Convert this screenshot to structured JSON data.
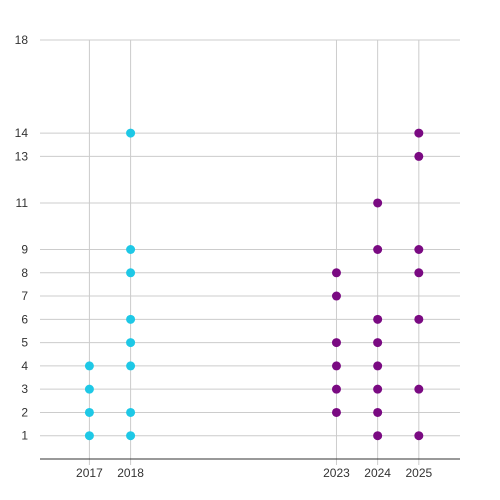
{
  "chart_data": {
    "type": "scatter",
    "title": "",
    "xlabel": "",
    "ylabel": "",
    "grid": true,
    "legend": "none",
    "x_ticks": [
      2017,
      2018,
      2023,
      2024,
      2025
    ],
    "y_ticks": [
      1,
      2,
      3,
      4,
      5,
      6,
      7,
      8,
      9,
      11,
      13,
      14,
      18
    ],
    "xlim": [
      2015.8,
      2026
    ],
    "ylim": [
      0,
      18
    ],
    "series": [
      {
        "color": "#1ec8e6",
        "points": [
          [
            2017,
            1
          ],
          [
            2017,
            2
          ],
          [
            2017,
            3
          ],
          [
            2017,
            4
          ],
          [
            2018,
            1
          ],
          [
            2018,
            2
          ],
          [
            2018,
            4
          ],
          [
            2018,
            5
          ],
          [
            2018,
            6
          ],
          [
            2018,
            8
          ],
          [
            2018,
            9
          ],
          [
            2018,
            14
          ]
        ]
      },
      {
        "color": "#7a0a82",
        "points": [
          [
            2023,
            2
          ],
          [
            2023,
            3
          ],
          [
            2023,
            4
          ],
          [
            2023,
            5
          ],
          [
            2023,
            7
          ],
          [
            2023,
            8
          ],
          [
            2024,
            1
          ],
          [
            2024,
            2
          ],
          [
            2024,
            3
          ],
          [
            2024,
            4
          ],
          [
            2024,
            5
          ],
          [
            2024,
            6
          ],
          [
            2024,
            9
          ],
          [
            2024,
            11
          ],
          [
            2025,
            1
          ],
          [
            2025,
            3
          ],
          [
            2025,
            6
          ],
          [
            2025,
            8
          ],
          [
            2025,
            9
          ],
          [
            2025,
            13
          ],
          [
            2025,
            14
          ]
        ]
      }
    ]
  }
}
